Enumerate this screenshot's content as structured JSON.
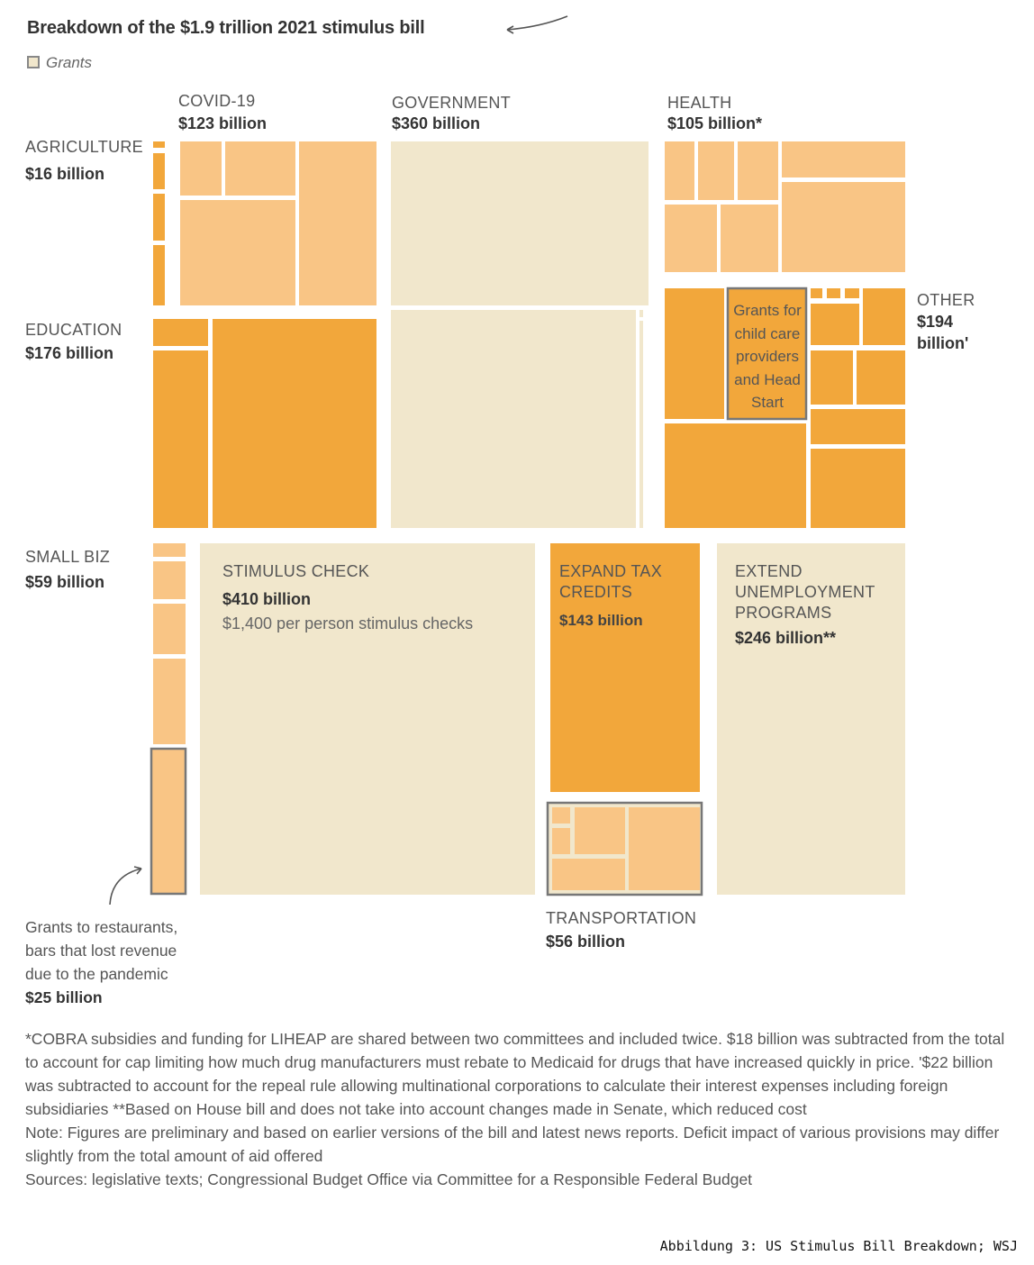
{
  "chart_data": {
    "type": "treemap",
    "title": "Breakdown of the $1.9 trillion 2021 stimulus bill",
    "legend": [
      {
        "label": "Grants",
        "color": "#f1e7cc"
      }
    ],
    "units": "billion USD",
    "colors": {
      "grants": "#f1e7cc",
      "light": "#f9c585",
      "dark": "#f2a73b",
      "outline": "#777777"
    },
    "categories": [
      {
        "name": "AGRICULTURE",
        "amount": "$16 billion",
        "value": 16
      },
      {
        "name": "COVID-19",
        "amount": "$123 billion",
        "value": 123
      },
      {
        "name": "GOVERNMENT",
        "amount": "$360 billion",
        "value": 360
      },
      {
        "name": "HEALTH",
        "amount": "$105 billion*",
        "value": 105
      },
      {
        "name": "EDUCATION",
        "amount": "$176 billion",
        "value": 176
      },
      {
        "name": "OTHER",
        "amount": "$194 billion'",
        "value": 194
      },
      {
        "name": "SMALL BIZ",
        "amount": "$59 billion",
        "value": 59
      },
      {
        "name": "STIMULUS CHECK",
        "amount": "$410 billion",
        "value": 410,
        "note": "$1,400 per person stimulus checks"
      },
      {
        "name": "EXPAND TAX CREDITS",
        "amount": "$143 billion",
        "value": 143
      },
      {
        "name": "EXTEND UNEMPLOYMENT PROGRAMS",
        "amount": "$246 billion**",
        "value": 246
      },
      {
        "name": "TRANSPORTATION",
        "amount": "$56 billion",
        "value": 56
      }
    ],
    "annotations": [
      {
        "text": "Grants for child care providers and Head Start"
      },
      {
        "text": "Grants to restaurants, bars that lost revenue due to the pandemic",
        "amount": "$25 billion",
        "value": 25
      }
    ]
  },
  "labels": {
    "grants_legend": "Grants",
    "agriculture": {
      "name": "AGRICULTURE",
      "amount": "$16 billion"
    },
    "covid": {
      "name": "COVID-19",
      "amount": "$123 billion"
    },
    "government": {
      "name": "GOVERNMENT",
      "amount": "$360 billion"
    },
    "health": {
      "name": "HEALTH",
      "amount": "$105 billion*"
    },
    "education": {
      "name": "EDUCATION",
      "amount": "$176 billion"
    },
    "other": {
      "name": "OTHER",
      "amount_line1": "$194",
      "amount_line2": "billion'"
    },
    "small_biz": {
      "name": "SMALL BIZ",
      "amount": "$59 billion"
    },
    "stimulus": {
      "name": "STIMULUS CHECK",
      "amount": "$410 billion",
      "note": "$1,400 per person stimulus checks"
    },
    "tax": {
      "name_line1": "EXPAND TAX",
      "name_line2": "CREDITS",
      "amount": "$143 billion"
    },
    "unemployment": {
      "name_line1": "EXTEND",
      "name_line2": "UNEMPLOYMENT",
      "name_line3": "PROGRAMS",
      "amount": "$246 billion**"
    },
    "transportation": {
      "name": "TRANSPORTATION",
      "amount": "$56 billion"
    },
    "childcare": {
      "l1": "Grants for",
      "l2": "child care",
      "l3": "providers",
      "l4": "and Head",
      "l5": "Start"
    },
    "restaurants": {
      "l1": "Grants to restaurants,",
      "l2": "bars that lost revenue",
      "l3": "due to the pandemic",
      "amount": "$25 billion"
    }
  },
  "footnotes": {
    "line1": "*COBRA subsidies and funding for LIHEAP are shared between two committees and included twice. $18 billion was subtracted from the total to account for cap limiting how much drug manufacturers must rebate to Medicaid for drugs that have increased quickly in price.   '$22 billion was subtracted to account for the repeal rule allowing multinational corporations to calculate their interest expenses including foreign subsidiaries   **Based on House bill and does not take into account changes made in Senate, which reduced cost",
    "line2": "Note: Figures are preliminary and based on earlier versions of the bill and latest news reports. Deficit impact of various provisions may differ slightly from the total amount of aid offered",
    "line3": "Sources: legislative texts; Congressional Budget Office via Committee for a Responsible Federal Budget"
  },
  "caption": "Abbildung 3: US Stimulus Bill Breakdown; WSJ"
}
